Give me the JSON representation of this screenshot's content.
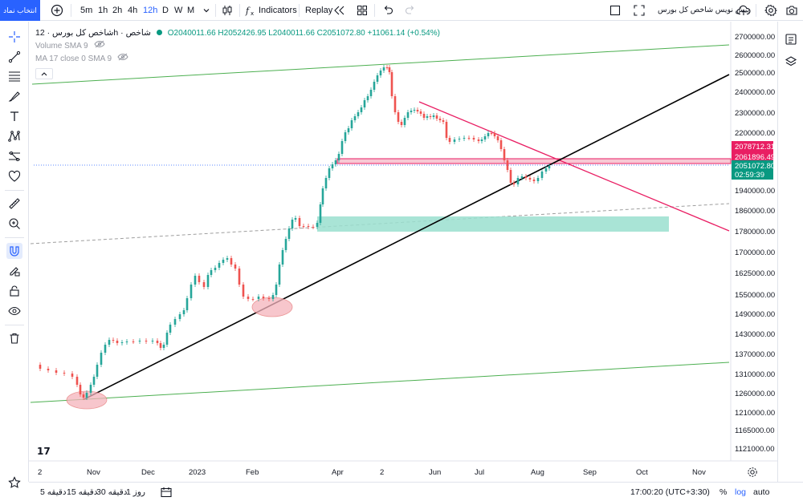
{
  "topbar": {
    "symbol_search": "انتخاب نماد",
    "intervals": [
      "5m",
      "1h",
      "2h",
      "4h",
      "12h",
      "D",
      "W",
      "M"
    ],
    "active_interval": "12h",
    "indicators_label": "Indicators",
    "replay_label": "Replay",
    "layout_name": "پیش نویس شاخص کل بورس"
  },
  "legend": {
    "title": "شاخص کل بورس · 12h · شاخص",
    "ohlc": "O2040011.66 H2052426.95 L2040011.66 C2051072.80 +11061.14 (+0.54%)",
    "volume": "Volume SMA 9",
    "ma": "MA 17 close 0 SMA 9"
  },
  "price_axis": {
    "ticks": [
      "2700000.00",
      "2600000.00",
      "2500000.00",
      "2400000.00",
      "2300000.00",
      "2200000.00",
      "1940000.00",
      "1860000.00",
      "1780000.00",
      "1700000.00",
      "1625000.00",
      "1550000.00",
      "1490000.00",
      "1430000.00",
      "1370000.00",
      "1310000.00",
      "1260000.00",
      "1210000.00",
      "1165000.00",
      "1121000.00"
    ],
    "label_red_top": "2078712.31",
    "label_red_bottom": "2061896.49",
    "label_last": "2051072.80",
    "label_countdown": "02:59:39"
  },
  "time_axis": {
    "labels": [
      "2",
      "Nov",
      "Dec",
      "2023",
      "Feb",
      "Apr",
      "2",
      "Jun",
      "Jul",
      "Aug",
      "Sep",
      "Oct",
      "Nov"
    ]
  },
  "bottombar": {
    "ranges": [
      "5 دقیقه",
      "15 دقیقه",
      "30 دقیقه",
      "1 روز"
    ],
    "time": "17:00:20 (UTC+3:30)",
    "percent": "%",
    "log": "log",
    "auto": "auto"
  },
  "colors": {
    "accent": "#2962ff",
    "up": "#26a69a",
    "down": "#ef5350",
    "drawing_red": "#e91e63",
    "drawing_green": "#4caf50",
    "teal_zone": "#9adfcf",
    "last_price": "#089981"
  },
  "chart_data": {
    "type": "candlestick",
    "price_range": [
      1121000,
      2700000
    ],
    "last_price": 2051072.8,
    "horizontal_zone": [
      2061896.49,
      2078712.31
    ]
  }
}
